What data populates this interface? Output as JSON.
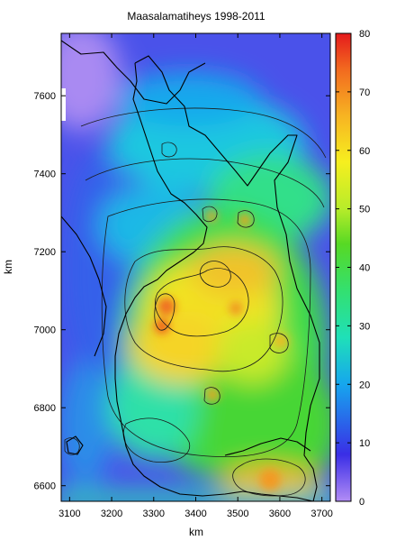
{
  "chart_data": {
    "type": "heatmap",
    "title": "Maasalamatiheys 1998-2011",
    "xlabel": "km",
    "ylabel": "km",
    "xlim": [
      3080,
      3720
    ],
    "ylim": [
      6560,
      7760
    ],
    "x_ticks": [
      3100,
      3200,
      3300,
      3400,
      3500,
      3600,
      3700
    ],
    "y_ticks": [
      6600,
      6800,
      7000,
      7200,
      7400,
      7600
    ],
    "colorbar": {
      "range": [
        0,
        80
      ],
      "ticks": [
        0,
        10,
        20,
        30,
        40,
        50,
        60,
        70,
        80
      ],
      "stops": [
        {
          "value": 0,
          "color": "#b28cf5"
        },
        {
          "value": 8,
          "color": "#3a2ee6"
        },
        {
          "value": 20,
          "color": "#16a6ee"
        },
        {
          "value": 28,
          "color": "#1fe0b8"
        },
        {
          "value": 36,
          "color": "#33e070"
        },
        {
          "value": 44,
          "color": "#57d924"
        },
        {
          "value": 50,
          "color": "#b7ec2a"
        },
        {
          "value": 58,
          "color": "#f6ef1f"
        },
        {
          "value": 66,
          "color": "#f7b322"
        },
        {
          "value": 74,
          "color": "#f2681f"
        },
        {
          "value": 80,
          "color": "#e41a1c"
        }
      ]
    },
    "hotspots": [
      {
        "x": 3400,
        "y": 7030,
        "value": 60
      },
      {
        "x": 3320,
        "y": 7050,
        "value": 70
      },
      {
        "x": 3460,
        "y": 7100,
        "value": 58
      },
      {
        "x": 3560,
        "y": 6640,
        "value": 60
      },
      {
        "x": 3350,
        "y": 6930,
        "value": 55
      },
      {
        "x": 3470,
        "y": 6920,
        "value": 54
      },
      {
        "x": 3260,
        "y": 6960,
        "value": 50
      },
      {
        "x": 3520,
        "y": 7190,
        "value": 52
      }
    ]
  }
}
